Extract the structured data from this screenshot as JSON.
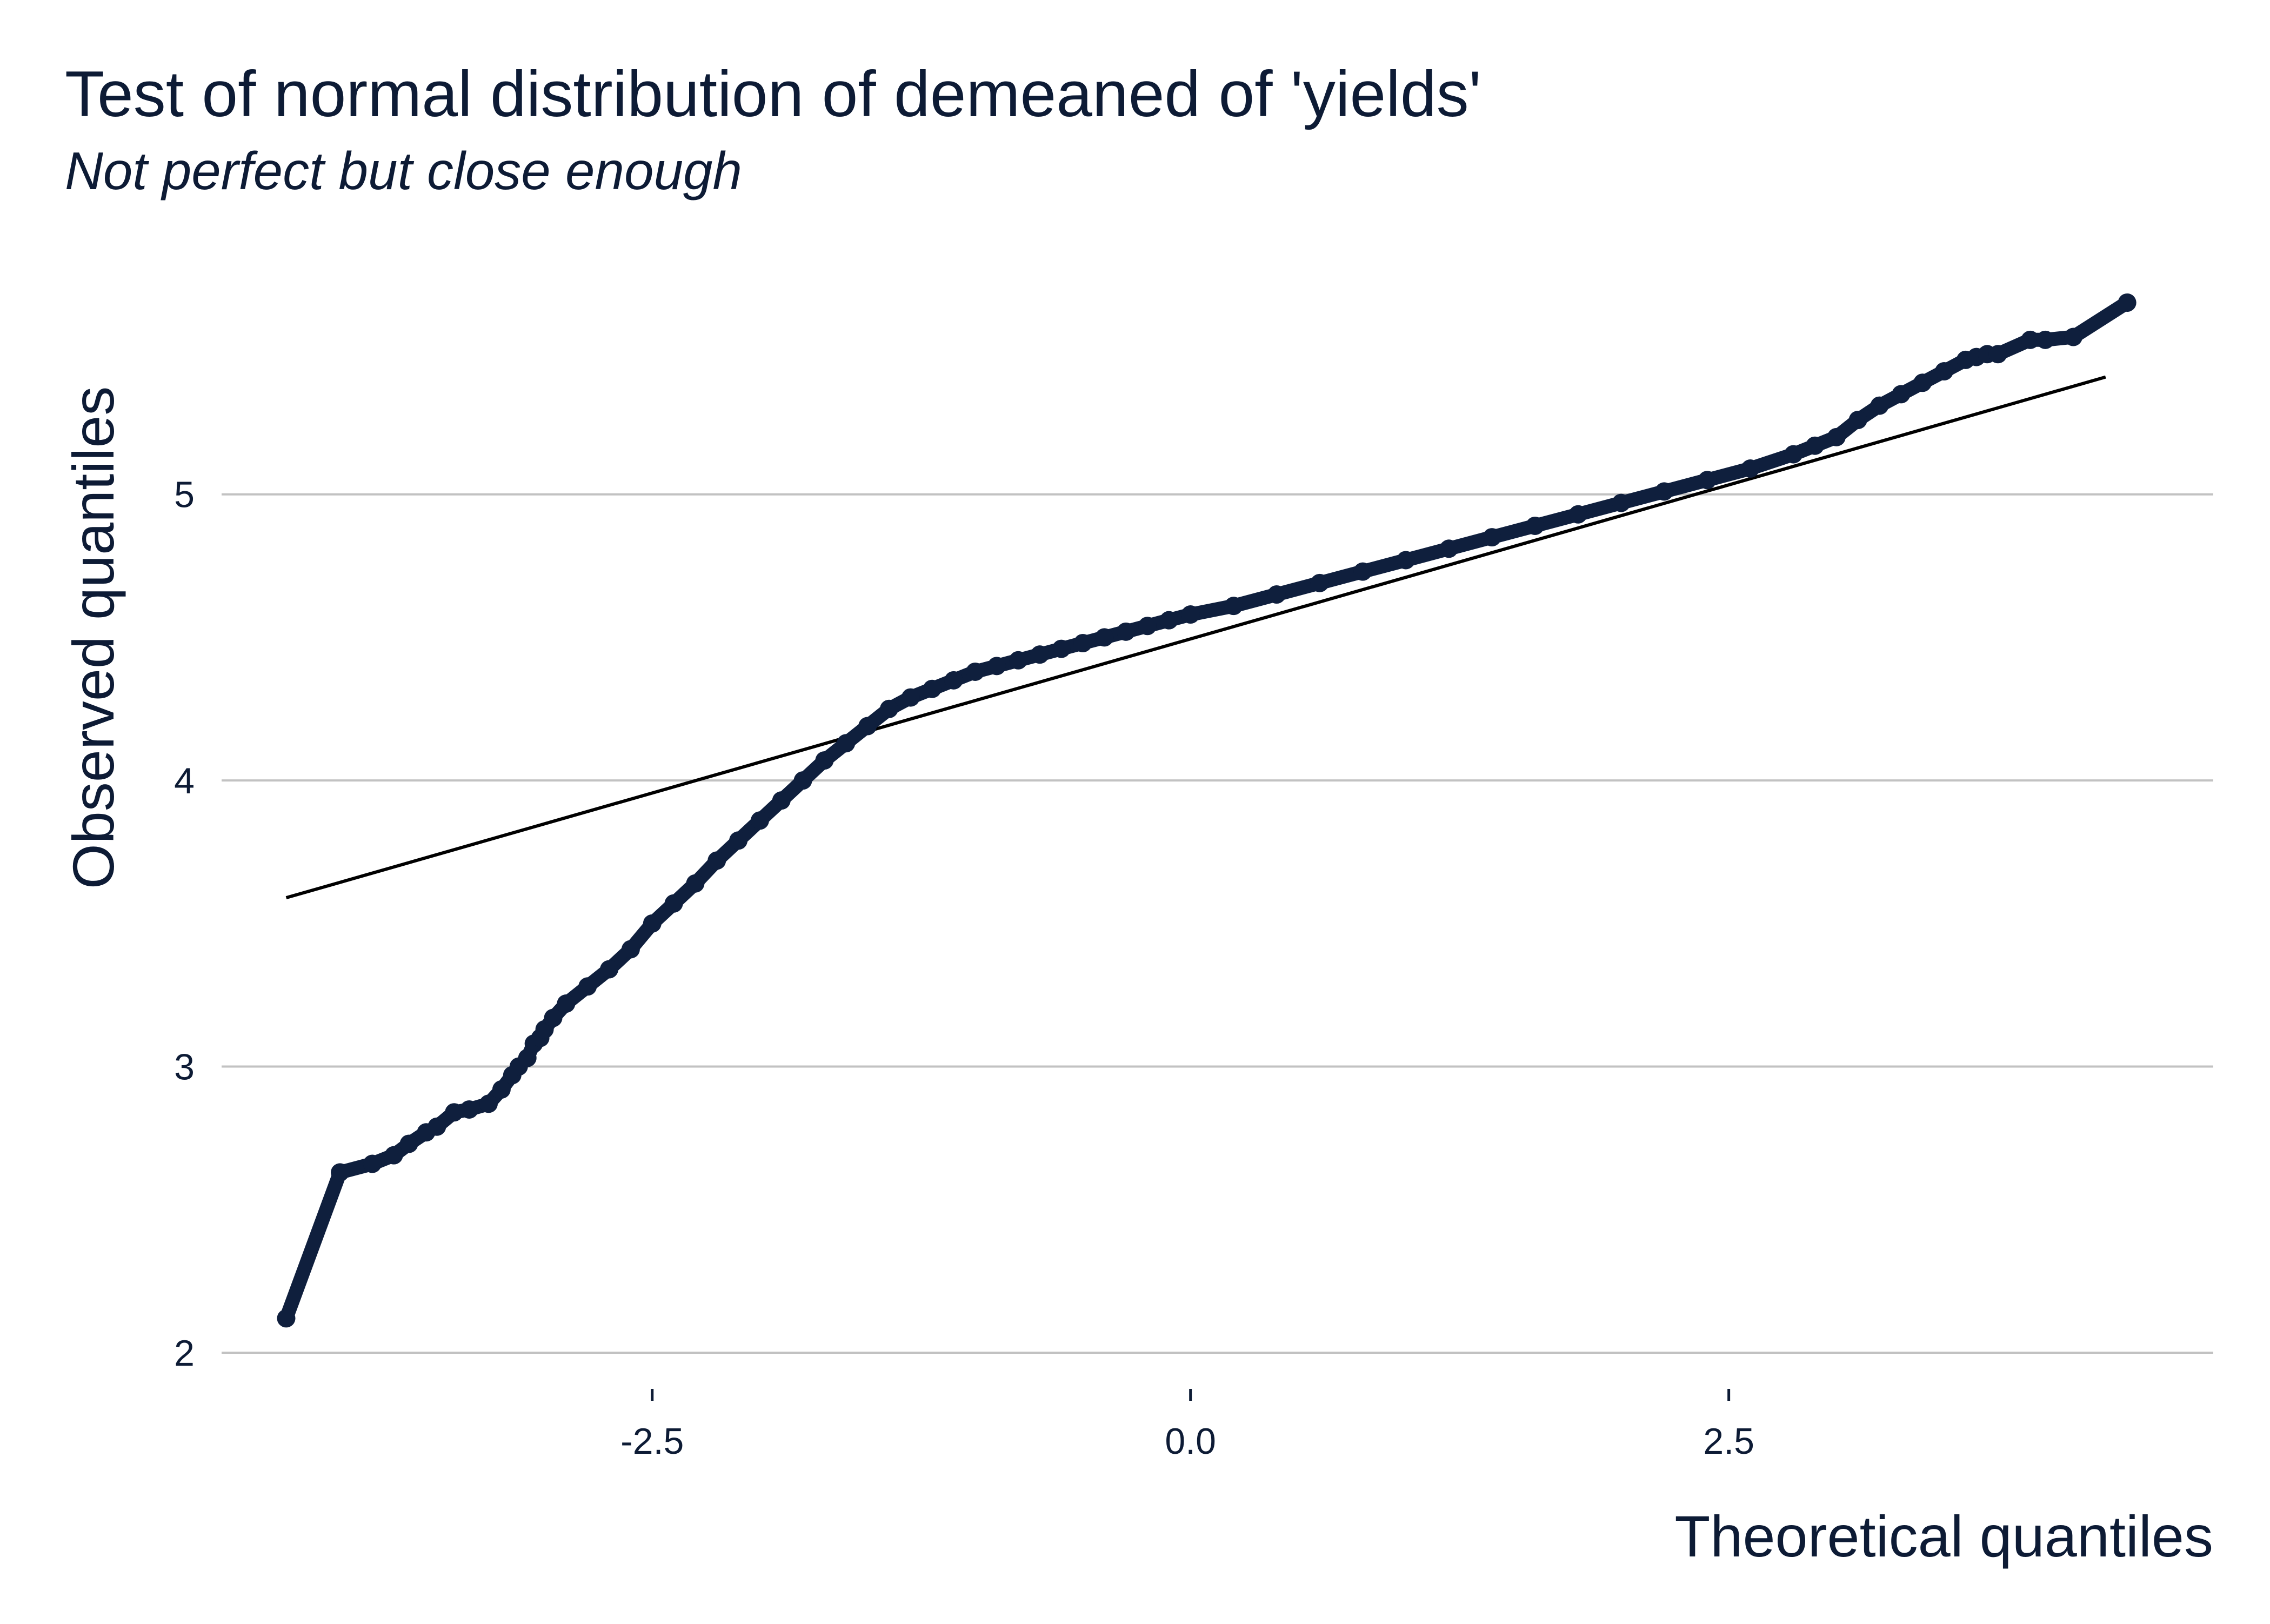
{
  "chart_data": {
    "type": "scatter",
    "title": "Test of normal distribution of demeaned of 'yields'",
    "subtitle": "Not perfect but close enough",
    "xlabel": "Theoretical quantiles",
    "ylabel": "Observed quantiles",
    "xlim": [
      -4.5,
      4.75
    ],
    "ylim": [
      1.93,
      5.84
    ],
    "x_ticks": [
      -2.5,
      0.0,
      2.5
    ],
    "x_tick_labels": [
      "-2.5",
      "0.0",
      "2.5"
    ],
    "y_ticks": [
      2,
      3,
      4,
      5
    ],
    "y_tick_labels": [
      "2",
      "3",
      "4",
      "5"
    ],
    "grid": "horizontal",
    "legend": "none",
    "colors": {
      "points": "#0f1f3d",
      "reference_line": "#000000",
      "grid": "#c2c2c2",
      "text": "#0d1b35"
    },
    "reference_line": {
      "x": [
        -4.2,
        4.25
      ],
      "y": [
        3.59,
        5.41
      ]
    },
    "series": [
      {
        "x": [
          -4.2,
          -3.95,
          -3.8,
          -3.7,
          -3.63,
          -3.55,
          -3.5,
          -3.42,
          -3.35,
          -3.26,
          -3.2,
          -3.15,
          -3.12,
          -3.08,
          -3.05,
          -3.02,
          -3.0,
          -2.96,
          -2.9,
          -2.8,
          -2.7,
          -2.6,
          -2.5,
          -2.4,
          -2.3,
          -2.2,
          -2.1,
          -2.0,
          -1.9,
          -1.8,
          -1.7,
          -1.6,
          -1.5,
          -1.4,
          -1.3,
          -1.2,
          -1.1,
          -1.0,
          -0.9,
          -0.8,
          -0.7,
          -0.6,
          -0.5,
          -0.4,
          -0.3,
          -0.2,
          -0.1,
          0.0,
          0.2,
          0.4,
          0.6,
          0.8,
          1.0,
          1.2,
          1.4,
          1.6,
          1.8,
          2.0,
          2.2,
          2.4,
          2.6,
          2.8,
          2.9,
          3.0,
          3.1,
          3.2,
          3.3,
          3.4,
          3.5,
          3.6,
          3.65,
          3.7,
          3.75,
          3.9,
          3.97,
          4.1,
          4.35
        ],
        "y": [
          2.12,
          2.63,
          2.66,
          2.69,
          2.73,
          2.77,
          2.79,
          2.84,
          2.85,
          2.87,
          2.92,
          2.97,
          3.0,
          3.03,
          3.08,
          3.1,
          3.13,
          3.17,
          3.22,
          3.28,
          3.34,
          3.41,
          3.5,
          3.57,
          3.64,
          3.72,
          3.79,
          3.86,
          3.93,
          4.0,
          4.07,
          4.13,
          4.19,
          4.25,
          4.29,
          4.32,
          4.35,
          4.38,
          4.4,
          4.42,
          4.44,
          4.46,
          4.48,
          4.5,
          4.52,
          4.54,
          4.56,
          4.58,
          4.61,
          4.65,
          4.69,
          4.73,
          4.77,
          4.81,
          4.85,
          4.89,
          4.93,
          4.97,
          5.01,
          5.05,
          5.09,
          5.14,
          5.17,
          5.2,
          5.26,
          5.31,
          5.35,
          5.39,
          5.43,
          5.47,
          5.48,
          5.49,
          5.49,
          5.54,
          5.54,
          5.55,
          5.67
        ]
      }
    ]
  }
}
